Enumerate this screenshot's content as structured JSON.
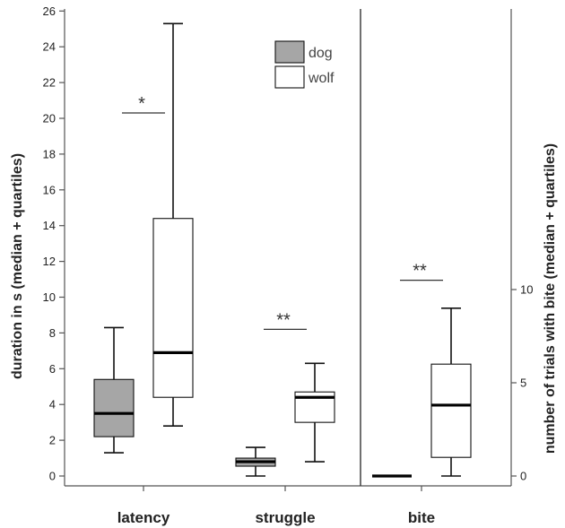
{
  "chart_data": {
    "type": "boxplot",
    "categories": [
      "latency",
      "struggle",
      "bite"
    ],
    "left_axis": {
      "label": "duration in s (median + quartiles)",
      "ylim": [
        -0.5,
        26.7
      ],
      "ticks": [
        0,
        2,
        4,
        6,
        8,
        10,
        12,
        14,
        16,
        18,
        20,
        22,
        24,
        26
      ]
    },
    "right_axis": {
      "label": "number of trials with bite (median + quartiles)",
      "ticks": [
        0,
        5,
        10
      ]
    },
    "legend": {
      "placement": "top-center",
      "entries": [
        {
          "name": "dog",
          "color": "#a6a6a6"
        },
        {
          "name": "wolf",
          "color": "#ffffff"
        }
      ]
    },
    "series": [
      {
        "name": "dog",
        "color": "#a6a6a6",
        "boxes": [
          {
            "category": "latency",
            "axis": "left",
            "min": 1.3,
            "q1": 2.2,
            "median": 3.5,
            "q3": 5.4,
            "max": 8.3
          },
          {
            "category": "struggle",
            "axis": "left",
            "min": 0.0,
            "q1": 0.55,
            "median": 0.8,
            "q3": 1.0,
            "max": 1.6
          },
          {
            "category": "bite",
            "axis": "right",
            "min": 0,
            "q1": 0,
            "median": 0,
            "q3": 0,
            "max": 0
          }
        ]
      },
      {
        "name": "wolf",
        "color": "#ffffff",
        "boxes": [
          {
            "category": "latency",
            "axis": "left",
            "min": 2.8,
            "q1": 4.4,
            "median": 6.9,
            "q3": 14.4,
            "max": 25.3
          },
          {
            "category": "struggle",
            "axis": "left",
            "min": 0.8,
            "q1": 3.0,
            "median": 4.4,
            "q3": 4.7,
            "max": 6.3
          },
          {
            "category": "bite",
            "axis": "right",
            "min": 0,
            "q1": 1,
            "median": 3.8,
            "q3": 6,
            "max": 9
          }
        ]
      }
    ],
    "annotations": [
      {
        "category": "latency",
        "text": "*",
        "axis": "left",
        "y": 20.3
      },
      {
        "category": "struggle",
        "text": "**",
        "axis": "left",
        "y": 8.2
      },
      {
        "category": "bite",
        "text": "**",
        "axis": "right",
        "y": 10.5
      }
    ],
    "grid": false
  }
}
